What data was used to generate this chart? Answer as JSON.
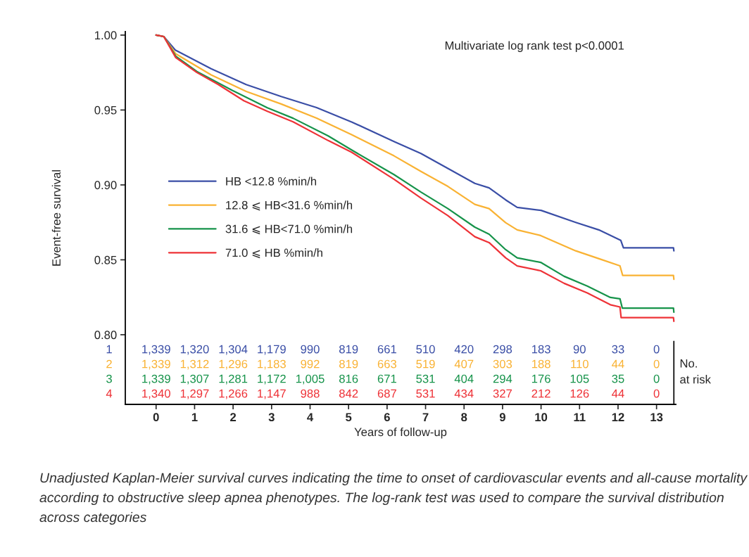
{
  "chart_data": {
    "type": "line",
    "ylabel": "Event-free survival",
    "xlabel": "Years of follow-up",
    "xlim": [
      -0.8,
      13.5
    ],
    "ylim": [
      0.7535,
      1.0023
    ],
    "xticks": [
      0,
      1,
      2,
      3,
      4,
      5,
      6,
      7,
      8,
      9,
      10,
      11,
      12,
      13
    ],
    "yticks": [
      {
        "value": 0.8,
        "label": "0.80"
      },
      {
        "value": 0.85,
        "label": "0.85"
      },
      {
        "value": 0.9,
        "label": "0.90"
      },
      {
        "value": 0.95,
        "label": "0.95"
      },
      {
        "value": 1.0,
        "label": "1.00"
      }
    ],
    "grid": false,
    "legend": "center left",
    "series": [
      {
        "name": "HB <12.8 %min/h",
        "color": "#3a4ea6",
        "x": [
          0,
          0.2,
          0.5,
          1.43,
          2.34,
          3.25,
          4.17,
          5.08,
          6.18,
          6.88,
          7.58,
          8.28,
          8.65,
          9.08,
          9.38,
          10.0,
          10.9,
          11.5,
          12.07,
          12.14,
          13.44,
          13.45
        ],
        "values": [
          1.0,
          0.999,
          0.99,
          0.9775,
          0.967,
          0.959,
          0.9516,
          0.942,
          0.929,
          0.921,
          0.911,
          0.901,
          0.898,
          0.89,
          0.885,
          0.883,
          0.875,
          0.87,
          0.863,
          0.858,
          0.858,
          0.856
        ]
      },
      {
        "name": "12.8 ⩽ HB<31.6 %min/h",
        "color": "#f9b233",
        "x": [
          0,
          0.2,
          0.51,
          1.43,
          2.34,
          3.25,
          4.17,
          5.08,
          6.18,
          6.88,
          7.58,
          8.28,
          8.65,
          9.08,
          9.38,
          9.99,
          10.9,
          11.52,
          12.05,
          12.12,
          13.44,
          13.45
        ],
        "values": [
          1.0,
          0.999,
          0.9875,
          0.9734,
          0.9624,
          0.954,
          0.9446,
          0.9335,
          0.9194,
          0.909,
          0.899,
          0.887,
          0.8842,
          0.8748,
          0.87,
          0.8662,
          0.856,
          0.8506,
          0.846,
          0.8396,
          0.8396,
          0.837
        ]
      },
      {
        "name": "31.6 ⩽ HB<71.0 %min/h",
        "color": "#16934a",
        "x": [
          0,
          0.2,
          0.51,
          1.06,
          1.97,
          2.89,
          3.56,
          4.47,
          5.08,
          6.18,
          6.88,
          7.58,
          8.28,
          8.65,
          9.08,
          9.38,
          9.99,
          10.6,
          11.2,
          11.8,
          12.05,
          12.11,
          13.44,
          13.45
        ],
        "values": [
          1.0,
          0.999,
          0.9859,
          0.9757,
          0.9632,
          0.9515,
          0.9445,
          0.9327,
          0.9233,
          0.9069,
          0.8952,
          0.8842,
          0.8718,
          0.8671,
          0.8568,
          0.8513,
          0.8483,
          0.839,
          0.8325,
          0.8249,
          0.824,
          0.8178,
          0.8178,
          0.815
        ]
      },
      {
        "name": "71.0 ⩽ HB %min/h",
        "color": "#ee3237",
        "x": [
          0,
          0.2,
          0.51,
          1.06,
          1.61,
          2.28,
          2.89,
          3.56,
          4.47,
          5.08,
          6.18,
          6.88,
          7.58,
          8.28,
          8.65,
          9.08,
          9.38,
          9.99,
          10.6,
          11.2,
          11.8,
          12.05,
          12.08,
          13.44,
          13.45
        ],
        "values": [
          1.0,
          0.999,
          0.985,
          0.975,
          0.9671,
          0.9562,
          0.9491,
          0.9421,
          0.9296,
          0.9218,
          0.9038,
          0.8912,
          0.8795,
          0.8654,
          0.8615,
          0.8513,
          0.8459,
          0.8427,
          0.8343,
          0.8279,
          0.82,
          0.8185,
          0.8114,
          0.8114,
          0.809
        ]
      }
    ],
    "annotations": [
      "Multivariate log rank test p<0.0001",
      "1",
      "1,339",
      "1,320",
      "1,304",
      "1,179",
      "990",
      "819",
      "661",
      "510",
      "420",
      "298",
      "183",
      "90",
      "33",
      "0",
      "2",
      "1,339",
      "1,312",
      "1,296",
      "1,183",
      "992",
      "819",
      "663",
      "519",
      "407",
      "303",
      "188",
      "110",
      "44",
      "0",
      "3",
      "1,339",
      "1,307",
      "1,281",
      "1,172",
      "1,005",
      "816",
      "671",
      "531",
      "404",
      "294",
      "176",
      "105",
      "35",
      "0",
      "4",
      "1,340",
      "1,297",
      "1,266",
      "1,147",
      "988",
      "842",
      "687",
      "531",
      "434",
      "327",
      "212",
      "126",
      "44",
      "0",
      "No.\nat risk",
      "Unadjusted Kaplan-Meier survival curves indicating the time to onset of cardiovascular events and all-cause mortality according to obstructive sleep apnea phenotypes. The log-rank test was used to compare the survival distribution across categories"
    ]
  }
}
